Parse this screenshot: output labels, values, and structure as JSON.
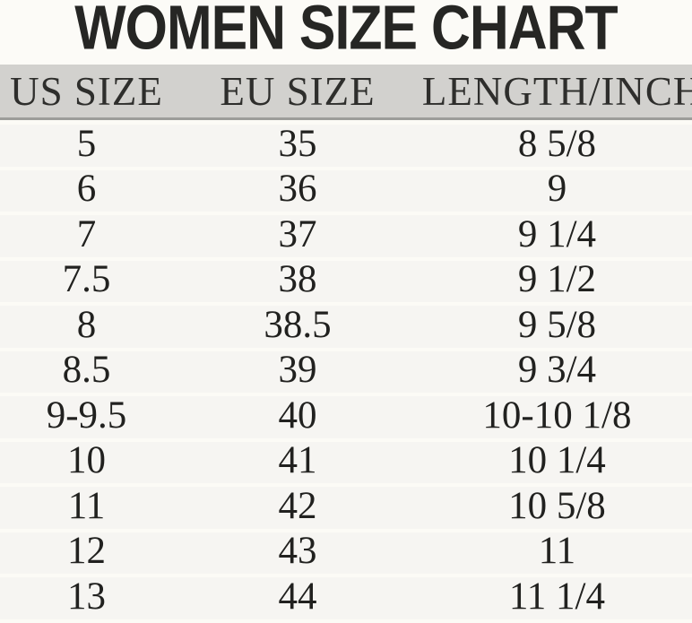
{
  "title": "WOMEN SIZE CHART",
  "chart_data": {
    "type": "table",
    "title": "WOMEN SIZE CHART",
    "columns": [
      "US SIZE",
      "EU SIZE",
      "LENGTH/INCH"
    ],
    "rows": [
      [
        "5",
        "35",
        "8 5/8"
      ],
      [
        "6",
        "36",
        "9"
      ],
      [
        "7",
        "37",
        "9 1/4"
      ],
      [
        "7.5",
        "38",
        "9 1/2"
      ],
      [
        "8",
        "38.5",
        "9 5/8"
      ],
      [
        "8.5",
        "39",
        "9 3/4"
      ],
      [
        "9-9.5",
        "40",
        "10-10 1/8"
      ],
      [
        "10",
        "41",
        "10 1/4"
      ],
      [
        "11",
        "42",
        "10 5/8"
      ],
      [
        "12",
        "43",
        "11"
      ],
      [
        "13",
        "44",
        "11 1/4"
      ]
    ],
    "layout": {
      "header_background": "#d2d1ce",
      "header_border": "#9d9d9a",
      "row_background": "#f6f5f2",
      "row_separator": "#fcfbf6",
      "page_background": "#fcfbf7",
      "text_color": "#21211f",
      "title_color": "#262624"
    }
  }
}
